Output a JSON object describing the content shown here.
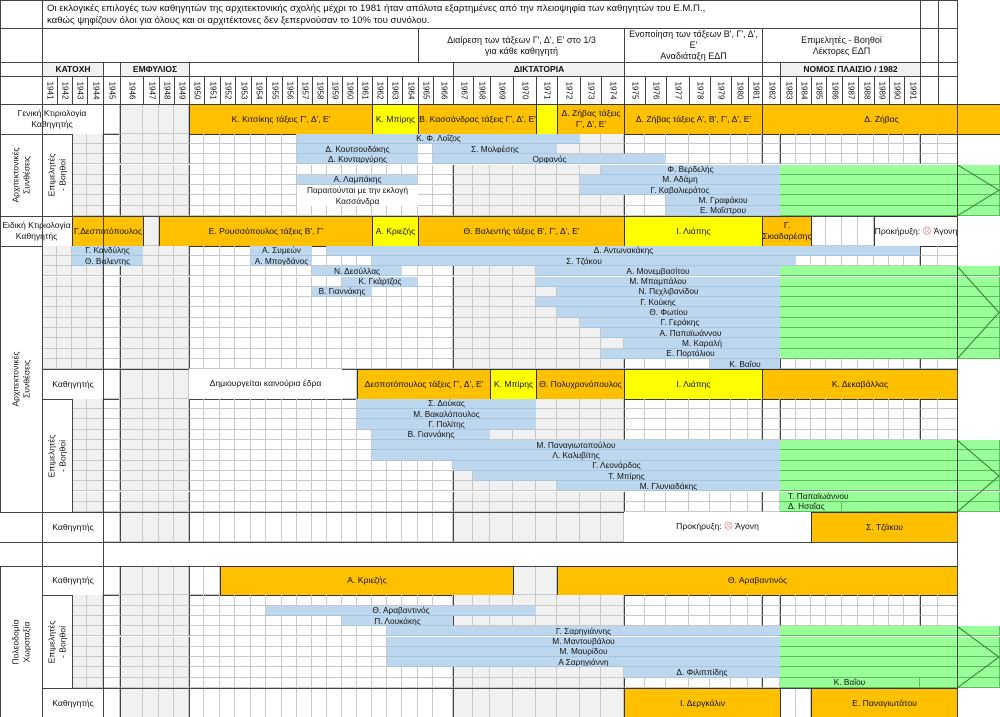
{
  "title": {
    "line1": "Οι εκλογικές επιλογές των καθηγητών της αρχιτεκτονικής σχολής μέχρι το 1981 ήταν απόλυτα εξαρτημένες από την πλειοψηφία των καθηγητών του Ε.Μ.Π.,",
    "line2": "καθώς ψηφίζουν όλοι για όλους και οι αρχιτέκτονες δεν ξεπερνούσαν το 10% του συνόλου."
  },
  "header_notes": [
    {
      "line1": "Διαίρεση των τάξεων Γ', Δ', Ε' στο 1/3",
      "line2": "για κάθε καθηγητή",
      "from": 1965,
      "to": 1974
    },
    {
      "line1": "Ενοποίηση των τάξεων Β', Γ', Δ', Ε'",
      "line2": "Αναδιάταξη ΕΔΠ",
      "from": 1975,
      "to": 1981
    },
    {
      "line1": "Επιμελητές - Βοηθοί",
      "line2": "Λέκτορες ΕΔΠ",
      "from": 1982,
      "to": 1991
    }
  ],
  "eras": [
    {
      "label": "ΚΑΤΟΧΗ",
      "from": 1941,
      "to": 1944
    },
    {
      "label": "ΕΜΦΥΛΙΟΣ",
      "from": 1946,
      "to": 1949
    },
    {
      "label": "ΔΙΚΤΑΤΟΡΙΑ",
      "from": 1967,
      "to": 1974
    },
    {
      "label": "ΝΟΜΟΣ ΠΛΑΙΣΙΟ / 1982",
      "from": 1983,
      "to": 1991
    }
  ],
  "years": [
    1941,
    1942,
    1943,
    1944,
    1945,
    1946,
    1947,
    1948,
    1949,
    1950,
    1951,
    1952,
    1953,
    1954,
    1955,
    1956,
    1957,
    1958,
    1959,
    1960,
    1961,
    1962,
    1963,
    1964,
    1965,
    1966,
    1967,
    1968,
    1969,
    1970,
    1971,
    1972,
    1973,
    1974,
    1975,
    1976,
    1977,
    1978,
    1979,
    1980,
    1981,
    1982,
    1983,
    1984,
    1985,
    1986,
    1987,
    1988,
    1989,
    1990,
    1991
  ],
  "colors": {
    "professor": "#ffc000",
    "interim_professor": "#ffff00",
    "assistant": "#bdd7ee",
    "continuing_to_present": "#99ff99",
    "failed_call_icon": "#e57373"
  },
  "kinds": {
    "P": "professor",
    "Y": "interim_professor",
    "A": "assistant",
    "N": "note",
    "B": "boxed_note",
    "G": "continuing_to_present"
  },
  "groups": [
    {
      "label": "Αρχιτεκτονικές Συνθέσεις",
      "level": "outer",
      "first_row": 1,
      "last_row": 8
    },
    {
      "label": "Επιμελητές - Βοηθοί",
      "level": "inner",
      "first_row": 1,
      "last_row": 8
    },
    {
      "label": "Αρχιτεκτονικές Συνθέσεις",
      "level": "outer",
      "first_row": 10,
      "last_row": 33
    },
    {
      "label": "Επιμελητές - Βοηθοί",
      "level": "inner",
      "first_row": 23,
      "last_row": 33
    },
    {
      "label": "Πολεοδομία Χωροταξία",
      "level": "outer",
      "first_row": 36,
      "last_row": 46
    },
    {
      "label": "Επιμελητές - Βοηθοί",
      "level": "inner",
      "first_row": 37,
      "last_row": 45
    }
  ],
  "continuation_arrows": [
    [
      4,
      8
    ],
    [
      12,
      20
    ],
    [
      27,
      33
    ],
    [
      40,
      45
    ]
  ],
  "rows": [
    {
      "type": "main",
      "label": "Γενική Κτιριολογία Καθηγητής",
      "label_scope": "department",
      "bars": [
        {
          "label": "Κ. Κιτσίκης τάξεις Γ', Δ', Ε'",
          "from": 1950,
          "to": 1961,
          "kind": "P"
        },
        {
          "label": "Κ. Μπίρης",
          "from": 1962,
          "to": 1964,
          "kind": "Y"
        },
        {
          "label": "Β. Κασσάνδρας τάξεις Γ', Δ', Ε'",
          "from": 1965,
          "to": 1970,
          "kind": "P"
        },
        {
          "label": "",
          "from": 1971,
          "to": 1971,
          "kind": "Y"
        },
        {
          "label": "Δ. Ζήβας τάξεις Γ', Δ', Ε'",
          "from": 1972,
          "to": 1974,
          "kind": "P"
        },
        {
          "label": "Δ. Ζήβας τάξεις Α', Β', Γ', Δ', Ε'",
          "from": 1975,
          "to": 1981,
          "kind": "P"
        },
        {
          "label": "Δ. Ζήβας",
          "from": 1982,
          "to": 1991,
          "kind": "P",
          "extend": "page"
        }
      ]
    },
    {
      "type": "sub",
      "bars": [
        {
          "label": "Κ. Φ. Λοΐζος",
          "from": 1957,
          "to": 1972,
          "kind": "A"
        }
      ]
    },
    {
      "type": "sub",
      "bars": [
        {
          "label": "Δ. Κουτσουδάκης",
          "from": 1957,
          "to": 1964,
          "kind": "A"
        },
        {
          "label": "Σ. Μολφέσης",
          "from": 1966,
          "to": 1971,
          "kind": "A"
        }
      ]
    },
    {
      "type": "sub",
      "bars": [
        {
          "label": "Δ. Κονταργύρης",
          "from": 1957,
          "to": 1964,
          "kind": "A"
        },
        {
          "label": "Ορφανός",
          "from": 1966,
          "to": 1976,
          "kind": "A"
        }
      ]
    },
    {
      "type": "sub",
      "bars": [
        {
          "label": "Φ. Βερδελής",
          "from": 1974,
          "to": 1982,
          "kind": "A"
        },
        {
          "label": "",
          "from": 1983,
          "to": 1991,
          "kind": "G",
          "extend": "page"
        }
      ]
    },
    {
      "type": "sub",
      "bars": [
        {
          "label": "Α. Λαμπάκης",
          "from": 1957,
          "to": 1964,
          "kind": "A"
        },
        {
          "label": "Μ. Αδάμη",
          "from": 1973,
          "to": 1982,
          "kind": "A"
        },
        {
          "label": "",
          "from": 1983,
          "to": 1991,
          "kind": "G",
          "extend": "page"
        }
      ]
    },
    {
      "type": "sub",
      "bars": [
        {
          "label": "Παραιτούνται με την εκλογή",
          "from": 1957,
          "to": 1964,
          "kind": "N"
        },
        {
          "label": "Γ. Καβαλιεράτος",
          "from": 1973,
          "to": 1982,
          "kind": "A"
        },
        {
          "label": "",
          "from": 1983,
          "to": 1991,
          "kind": "G",
          "extend": "page"
        }
      ]
    },
    {
      "type": "sub",
      "bars": [
        {
          "label": "Κασσάνδρα",
          "from": 1957,
          "to": 1964,
          "kind": "N"
        },
        {
          "label": "Μ. Γραφάκου",
          "from": 1977,
          "to": 1982,
          "kind": "A"
        },
        {
          "label": "",
          "from": 1983,
          "to": 1991,
          "kind": "G",
          "extend": "page"
        }
      ]
    },
    {
      "type": "sub",
      "bars": [
        {
          "label": "Ε. Μαΐστρου",
          "from": 1977,
          "to": 1982,
          "kind": "A"
        },
        {
          "label": "",
          "from": 1983,
          "to": 1991,
          "kind": "G",
          "extend": "page"
        }
      ]
    },
    {
      "type": "main",
      "label": "Ειδική Κτιριολογία Καθηγητής",
      "label_scope": "chair",
      "bars": [
        {
          "label": "Γ.Δεσποτόπουλος",
          "from": 1943,
          "to": 1946,
          "kind": "P"
        },
        {
          "label": "Ε. Ρουσσόπουλος τάξεις Β', Γ'",
          "from": 1948,
          "to": 1961,
          "kind": "P"
        },
        {
          "label": "Α. Κριεζής",
          "from": 1962,
          "to": 1964,
          "kind": "Y"
        },
        {
          "label": "Θ. Βαλεντής τάξεις Β', Γ', Δ', Ε'",
          "from": 1965,
          "to": 1974,
          "kind": "P"
        },
        {
          "label": "Ι. Λιάπης",
          "from": 1975,
          "to": 1981,
          "kind": "Y"
        },
        {
          "label": "Γ. Σκιαδαρέσης",
          "from": 1982,
          "to": 1984,
          "kind": "P"
        },
        {
          "label": "Προκήρυξη:",
          "suffix": "Άγονη",
          "icon": "sad-face-icon",
          "from": 1989,
          "to": 1991,
          "kind": "B",
          "extend": "table"
        }
      ]
    },
    {
      "type": "sub",
      "bars": [
        {
          "label": "Γ. Κανδύλης",
          "from": 1943,
          "to": 1946,
          "kind": "A"
        },
        {
          "label": "Α. Συμεών",
          "from": 1954,
          "to": 1957,
          "kind": "A"
        },
        {
          "label": "Δ. Αντωνακάκης",
          "from": 1959,
          "to": 1991,
          "kind": "A"
        }
      ]
    },
    {
      "type": "sub",
      "bars": [
        {
          "label": "Θ. Βαλεντης",
          "from": 1943,
          "to": 1946,
          "kind": "A"
        },
        {
          "label": "Α. Μπογδάνος",
          "from": 1954,
          "to": 1957,
          "kind": "A"
        },
        {
          "label": "Σ. Τζάκου",
          "from": 1962,
          "to": 1983,
          "kind": "A"
        }
      ]
    },
    {
      "type": "sub",
      "bars": [
        {
          "label": "Ν. Δεσύλλας",
          "from": 1958,
          "to": 1963,
          "kind": "A"
        },
        {
          "label": "Α. Μονεμβασίτου",
          "from": 1971,
          "to": 1982,
          "kind": "A"
        },
        {
          "label": "",
          "from": 1983,
          "to": 1991,
          "kind": "G",
          "extend": "page"
        }
      ]
    },
    {
      "type": "sub",
      "bars": [
        {
          "label": "Κ. Γκάρτζος",
          "from": 1960,
          "to": 1964,
          "kind": "A"
        },
        {
          "label": "Μ. Μπαμπάλου",
          "from": 1971,
          "to": 1982,
          "kind": "A"
        },
        {
          "label": "",
          "from": 1983,
          "to": 1991,
          "kind": "G",
          "extend": "page"
        }
      ]
    },
    {
      "type": "sub",
      "bars": [
        {
          "label": "Β. Γιαννάκης",
          "from": 1958,
          "to": 1961,
          "kind": "A"
        },
        {
          "label": "Ν. Πεχλιβανίδου",
          "from": 1972,
          "to": 1982,
          "kind": "A"
        },
        {
          "label": "",
          "from": 1983,
          "to": 1991,
          "kind": "G",
          "extend": "page"
        }
      ]
    },
    {
      "type": "sub",
      "bars": [
        {
          "label": "Γ. Κούκης",
          "from": 1971,
          "to": 1982,
          "kind": "A"
        },
        {
          "label": "",
          "from": 1983,
          "to": 1991,
          "kind": "G",
          "extend": "page"
        }
      ]
    },
    {
      "type": "sub",
      "bars": [
        {
          "label": "Θ. Φωτίου",
          "from": 1972,
          "to": 1982,
          "kind": "A"
        },
        {
          "label": "",
          "from": 1983,
          "to": 1991,
          "kind": "G",
          "extend": "page"
        }
      ]
    },
    {
      "type": "sub",
      "bars": [
        {
          "label": "Γ. Γεράκης",
          "from": 1973,
          "to": 1982,
          "kind": "A"
        },
        {
          "label": "",
          "from": 1983,
          "to": 1991,
          "kind": "G",
          "extend": "page"
        }
      ]
    },
    {
      "type": "sub",
      "bars": [
        {
          "label": "Α. Παπαϊωάννου",
          "from": 1974,
          "to": 1982,
          "kind": "A"
        },
        {
          "label": "",
          "from": 1983,
          "to": 1991,
          "kind": "G",
          "extend": "page"
        }
      ]
    },
    {
      "type": "sub",
      "bars": [
        {
          "label": "Μ. Καραλή",
          "from": 1975,
          "to": 1982,
          "kind": "A"
        },
        {
          "label": "",
          "from": 1983,
          "to": 1991,
          "kind": "G",
          "extend": "page"
        }
      ]
    },
    {
      "type": "sub",
      "bars": [
        {
          "label": "Ε. Πορτάλιου",
          "from": 1974,
          "to": 1982,
          "kind": "A"
        },
        {
          "label": "",
          "from": 1983,
          "to": 1991,
          "kind": "G",
          "extend": "page"
        }
      ]
    },
    {
      "type": "sub",
      "bars": [
        {
          "label": "Κ. Βαΐου",
          "from": 1979,
          "to": 1982,
          "kind": "A"
        }
      ]
    },
    {
      "type": "main",
      "label": "Καθηγητής",
      "label_scope": "professor",
      "bars": [
        {
          "label": "Δημιουργείται καινούρια έδρα",
          "from": 1950,
          "to": 1959,
          "kind": "N"
        },
        {
          "label": "Δεσποτόπουλος τάξεις Γ', Δ', Ε'",
          "from": 1961,
          "to": 1968,
          "kind": "P"
        },
        {
          "label": "Κ. Μπίρης",
          "from": 1969,
          "to": 1970,
          "kind": "Y"
        },
        {
          "label": "Θ. Πολυχρονόπουλος",
          "from": 1971,
          "to": 1974,
          "kind": "P"
        },
        {
          "label": "Ι. Λιάπης",
          "from": 1975,
          "to": 1981,
          "kind": "Y"
        },
        {
          "label": "Κ. Δεκαβάλλας",
          "from": 1982,
          "to": 1991,
          "kind": "P",
          "extend": "table"
        }
      ]
    },
    {
      "type": "sub",
      "bars": [
        {
          "label": "Σ. Δούκας",
          "from": 1961,
          "to": 1970,
          "kind": "A"
        }
      ]
    },
    {
      "type": "sub",
      "bars": [
        {
          "label": "Μ. Βακαλόπουλος",
          "from": 1961,
          "to": 1970,
          "kind": "A"
        }
      ]
    },
    {
      "type": "sub",
      "bars": [
        {
          "label": "Γ. Πολίτης",
          "from": 1961,
          "to": 1970,
          "kind": "A"
        }
      ]
    },
    {
      "type": "sub",
      "bars": [
        {
          "label": "Β. Γιαννάκης",
          "from": 1962,
          "to": 1968,
          "kind": "A"
        }
      ]
    },
    {
      "type": "sub",
      "bars": [
        {
          "label": "Μ. Παναγιωτοπούλου",
          "from": 1962,
          "to": 1982,
          "kind": "A"
        },
        {
          "label": "",
          "from": 1983,
          "to": 1991,
          "kind": "G",
          "extend": "page"
        }
      ]
    },
    {
      "type": "sub",
      "bars": [
        {
          "label": "Λ. Καλυβίτης",
          "from": 1962,
          "to": 1982,
          "kind": "A"
        },
        {
          "label": "",
          "from": 1983,
          "to": 1991,
          "kind": "G",
          "extend": "page"
        }
      ]
    },
    {
      "type": "sub",
      "bars": [
        {
          "label": "Γ. Λεονάρδος",
          "from": 1967,
          "to": 1982,
          "kind": "A"
        },
        {
          "label": "",
          "from": 1983,
          "to": 1991,
          "kind": "G",
          "extend": "page"
        }
      ]
    },
    {
      "type": "sub",
      "bars": [
        {
          "label": "Τ. Μπίρης",
          "from": 1968,
          "to": 1982,
          "kind": "A"
        },
        {
          "label": "",
          "from": 1983,
          "to": 1991,
          "kind": "G",
          "extend": "page"
        }
      ]
    },
    {
      "type": "sub",
      "bars": [
        {
          "label": "Μ. Γλυνιαδάκης",
          "from": 1972,
          "to": 1982,
          "kind": "A"
        },
        {
          "label": "",
          "from": 1983,
          "to": 1991,
          "kind": "G",
          "extend": "page"
        }
      ]
    },
    {
      "type": "sub",
      "bars": [
        {
          "label": "Τ. Παπαϊωάννου",
          "from": 1983,
          "to": 1991,
          "kind": "G",
          "extend": "page"
        }
      ]
    },
    {
      "type": "sub",
      "bars": [
        {
          "label": "Δ. Ησαΐας",
          "from": 1983,
          "to": 1986,
          "kind": "G"
        },
        {
          "label": "",
          "from": 1987,
          "to": 1991,
          "kind": "G",
          "extend": "page"
        }
      ]
    },
    {
      "type": "main",
      "label": "Καθηγητής",
      "label_scope": "professor",
      "bars": [
        {
          "label": "Προκήρυξη:",
          "suffix": "Άγονη",
          "icon": "sad-face-icon",
          "from": 1975,
          "to": 1984,
          "kind": "N"
        },
        {
          "label": "Σ. Τζάκου",
          "from": 1985,
          "to": 1991,
          "kind": "P",
          "extend": "table"
        }
      ]
    },
    {
      "type": "blank",
      "bars": []
    },
    {
      "type": "main",
      "label": "Καθηγητής",
      "label_scope": "professor",
      "bars": [
        {
          "label": "Α. Κριεζής",
          "from": 1952,
          "to": 1969,
          "kind": "P"
        },
        {
          "label": "Θ. Αραβαντινός",
          "from": 1972,
          "to": 1991,
          "kind": "P",
          "extend": "table"
        }
      ]
    },
    {
      "type": "sub",
      "bars": []
    },
    {
      "type": "sub",
      "bars": [
        {
          "label": "Θ. Αραβαντινός",
          "from": 1955,
          "to": 1970,
          "kind": "A"
        }
      ]
    },
    {
      "type": "sub",
      "bars": [
        {
          "label": "Π. Λουκάκης",
          "from": 1960,
          "to": 1966,
          "kind": "A"
        }
      ]
    },
    {
      "type": "sub",
      "bars": [
        {
          "label": "Γ. Σαρηγιάννης",
          "from": 1963,
          "to": 1982,
          "kind": "A"
        },
        {
          "label": "",
          "from": 1983,
          "to": 1991,
          "kind": "G",
          "extend": "page"
        }
      ]
    },
    {
      "type": "sub",
      "bars": [
        {
          "label": "Μ. Μαντουβάλου",
          "from": 1963,
          "to": 1982,
          "kind": "A"
        },
        {
          "label": "",
          "from": 1983,
          "to": 1991,
          "kind": "G",
          "extend": "page"
        }
      ]
    },
    {
      "type": "sub",
      "bars": [
        {
          "label": "Μ. Μαυρίδου",
          "from": 1963,
          "to": 1982,
          "kind": "A"
        },
        {
          "label": "",
          "from": 1983,
          "to": 1991,
          "kind": "G",
          "extend": "page"
        }
      ]
    },
    {
      "type": "sub",
      "bars": [
        {
          "label": "Α Σαρηγιάννη",
          "from": 1963,
          "to": 1982,
          "kind": "A"
        },
        {
          "label": "",
          "from": 1983,
          "to": 1991,
          "kind": "G",
          "extend": "page"
        }
      ]
    },
    {
      "type": "sub",
      "bars": [
        {
          "label": "Δ. Φιλιππίδης",
          "from": 1975,
          "to": 1982,
          "kind": "A"
        },
        {
          "label": "",
          "from": 1983,
          "to": 1991,
          "kind": "G",
          "extend": "page"
        }
      ]
    },
    {
      "type": "sub",
      "bars": [
        {
          "label": "Κ. Βαΐου",
          "from": 1983,
          "to": 1991,
          "kind": "G",
          "centered": true
        },
        {
          "label": "",
          "from": 1991,
          "to": 1991,
          "kind": "G",
          "extend": "page",
          "after": true
        }
      ]
    },
    {
      "type": "main",
      "label": "Καθηγητής",
      "label_scope": "professor",
      "bars": [
        {
          "label": "Ι. Δεργκάλιν",
          "from": 1975,
          "to": 1982,
          "kind": "P"
        },
        {
          "label": "Ε. Παναγιωτάτου",
          "from": 1985,
          "to": 1991,
          "kind": "P",
          "extend": "table"
        }
      ]
    }
  ]
}
